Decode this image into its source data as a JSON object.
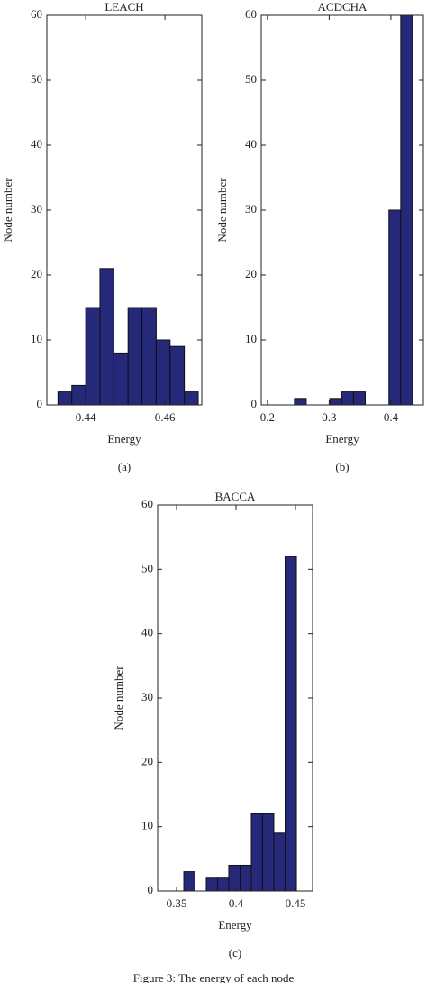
{
  "chart_data": [
    {
      "type": "histogram",
      "title": "LEACH",
      "x_label": "Energy",
      "y_label": "Node number",
      "caption": "(a)",
      "bins": [
        0.433,
        0.4365,
        0.44,
        0.4436,
        0.4471,
        0.4507,
        0.4542,
        0.4578,
        0.4613,
        0.4649,
        0.4684
      ],
      "counts": [
        2,
        3,
        15,
        21,
        8,
        15,
        15,
        10,
        9,
        2
      ],
      "color": "#26287a",
      "xlim": [
        0.4302,
        0.4693
      ],
      "xticks": [
        0.44,
        0.46
      ],
      "ylim": [
        0,
        60
      ],
      "yticks": [
        0,
        10,
        20,
        30,
        40,
        50,
        60
      ]
    },
    {
      "type": "histogram",
      "title": "ACDCHA",
      "x_label": "Energy",
      "y_label": "Node number",
      "caption": "(b)",
      "bins": [
        0.2438,
        0.2629,
        0.282,
        0.3012,
        0.3203,
        0.3394,
        0.3585,
        0.3776,
        0.3968,
        0.4159,
        0.435
      ],
      "counts": [
        1,
        0,
        0,
        1,
        2,
        2,
        0,
        0,
        30,
        60
      ],
      "color": "#26287a",
      "xlim": [
        0.19,
        0.4526
      ],
      "xticks": [
        0.2,
        0.3,
        0.4
      ],
      "ylim": [
        0,
        60
      ],
      "yticks": [
        0,
        10,
        20,
        30,
        40,
        50,
        60
      ]
    },
    {
      "type": "histogram",
      "title": "BACCA",
      "x_label": "Energy",
      "y_label": "Node number",
      "caption": "(c)",
      "bins": [
        0.3561,
        0.3655,
        0.375,
        0.3845,
        0.3939,
        0.4034,
        0.4129,
        0.4223,
        0.4318,
        0.4413,
        0.4508
      ],
      "counts": [
        3,
        0,
        2,
        2,
        4,
        4,
        12,
        12,
        9,
        52
      ],
      "color": "#26287a",
      "xlim": [
        0.3341,
        0.4644
      ],
      "xticks": [
        0.35,
        0.4,
        0.45
      ],
      "ylim": [
        0,
        60
      ],
      "yticks": [
        0,
        10,
        20,
        30,
        40,
        50,
        60
      ]
    }
  ],
  "figure_caption": "Figure 3: The energy of each node"
}
